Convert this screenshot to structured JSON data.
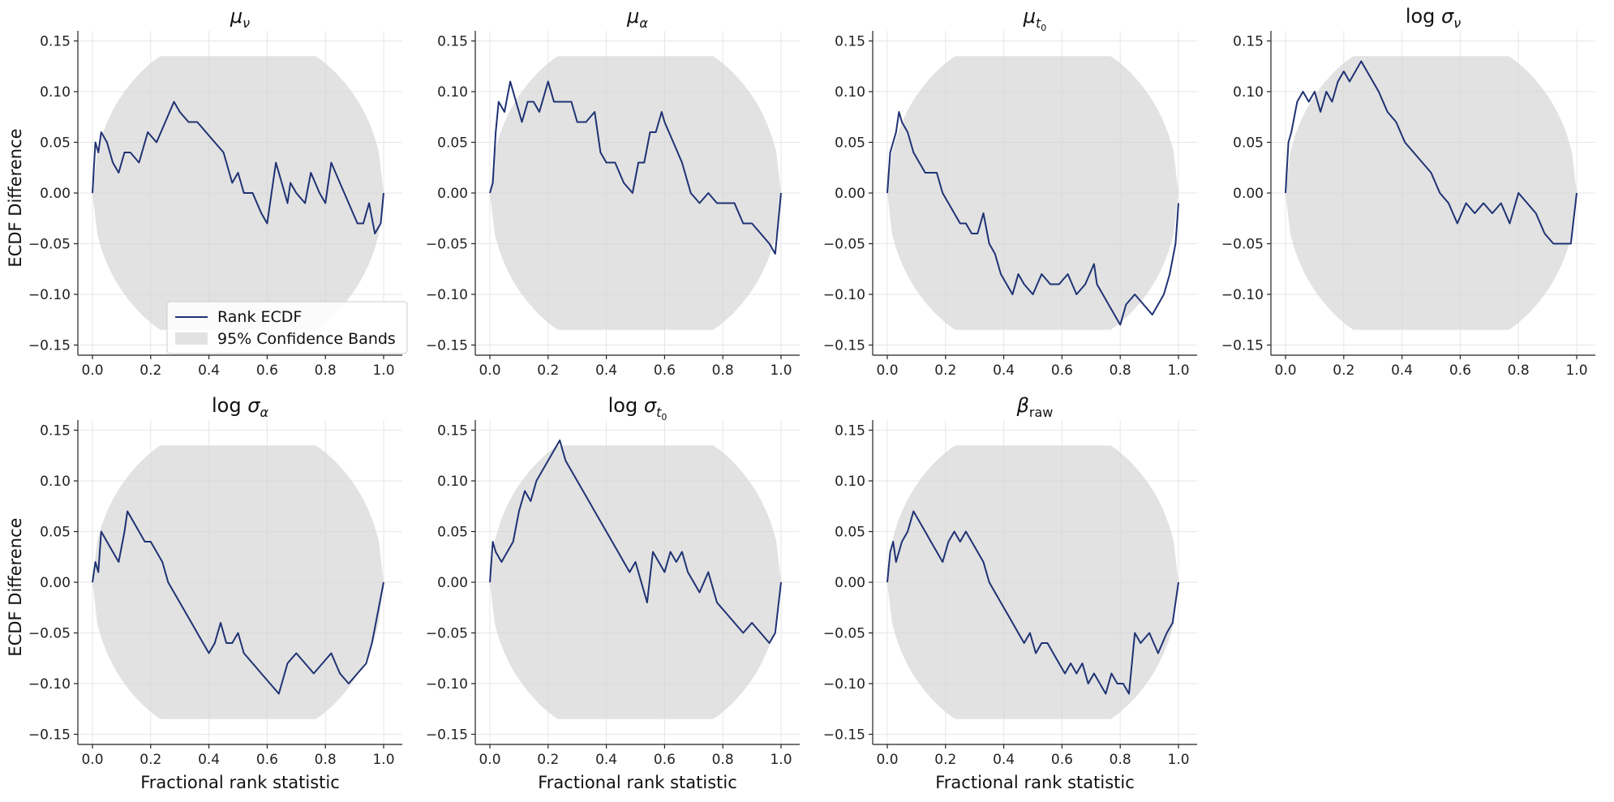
{
  "figure": {
    "y_axis_label": "ECDF Difference",
    "x_axis_label": "Fractional rank statistic",
    "legend": {
      "placement": "lower-center of first panel",
      "items": [
        {
          "label": "Rank ECDF",
          "kind": "line"
        },
        {
          "label": "95% Confidence Bands",
          "kind": "band"
        }
      ]
    },
    "colors": {
      "line": "#1f3273",
      "band": "#d3d3d3",
      "grid": "#e6e6e6",
      "axis": "#222222"
    }
  },
  "chart_data": [
    {
      "type": "line",
      "title_parts": [
        {
          "text": "μ",
          "style": "italic"
        },
        {
          "text": "ν",
          "style": "italic-sub"
        }
      ],
      "xlim": [
        0.0,
        1.0
      ],
      "ylim": [
        -0.15,
        0.15
      ],
      "xticks": [
        "0.0",
        "0.2",
        "0.4",
        "0.6",
        "0.8",
        "1.0"
      ],
      "yticks": [
        "−0.15",
        "−0.10",
        "−0.05",
        "0.00",
        "0.05",
        "0.10",
        "0.15"
      ],
      "series": [
        {
          "x": [
            0,
            0.01,
            0.02,
            0.03,
            0.05,
            0.07,
            0.09,
            0.11,
            0.13,
            0.16,
            0.19,
            0.22,
            0.25,
            0.28,
            0.3,
            0.33,
            0.36,
            0.39,
            0.42,
            0.45,
            0.48,
            0.5,
            0.52,
            0.55,
            0.58,
            0.6,
            0.63,
            0.65,
            0.67,
            0.68,
            0.7,
            0.73,
            0.75,
            0.78,
            0.8,
            0.82,
            0.85,
            0.88,
            0.91,
            0.93,
            0.95,
            0.97,
            0.99,
            1.0
          ],
          "y": [
            0,
            0.05,
            0.04,
            0.06,
            0.05,
            0.03,
            0.02,
            0.04,
            0.04,
            0.03,
            0.06,
            0.05,
            0.07,
            0.09,
            0.08,
            0.07,
            0.07,
            0.06,
            0.05,
            0.04,
            0.01,
            0.02,
            0.0,
            0.0,
            -0.02,
            -0.03,
            0.03,
            0.01,
            -0.01,
            0.01,
            0.0,
            -0.01,
            0.02,
            0.0,
            -0.01,
            0.03,
            0.01,
            -0.01,
            -0.03,
            -0.03,
            -0.01,
            -0.04,
            -0.03,
            0.0
          ]
        }
      ]
    },
    {
      "type": "line",
      "title_parts": [
        {
          "text": "μ",
          "style": "italic"
        },
        {
          "text": "α",
          "style": "italic-sub"
        }
      ],
      "xlim": [
        0.0,
        1.0
      ],
      "ylim": [
        -0.15,
        0.15
      ],
      "xticks": [
        "0.0",
        "0.2",
        "0.4",
        "0.6",
        "0.8",
        "1.0"
      ],
      "yticks": [
        "−0.15",
        "−0.10",
        "−0.05",
        "0.00",
        "0.05",
        "0.10",
        "0.15"
      ],
      "series": [
        {
          "x": [
            0,
            0.01,
            0.02,
            0.03,
            0.05,
            0.07,
            0.09,
            0.11,
            0.13,
            0.15,
            0.17,
            0.19,
            0.2,
            0.22,
            0.25,
            0.28,
            0.3,
            0.33,
            0.36,
            0.38,
            0.4,
            0.43,
            0.46,
            0.49,
            0.51,
            0.53,
            0.55,
            0.57,
            0.59,
            0.6,
            0.63,
            0.66,
            0.69,
            0.72,
            0.75,
            0.78,
            0.81,
            0.84,
            0.87,
            0.9,
            0.93,
            0.96,
            0.98,
            1.0
          ],
          "y": [
            0,
            0.01,
            0.06,
            0.09,
            0.08,
            0.11,
            0.09,
            0.07,
            0.09,
            0.09,
            0.08,
            0.1,
            0.11,
            0.09,
            0.09,
            0.09,
            0.07,
            0.07,
            0.08,
            0.04,
            0.03,
            0.03,
            0.01,
            0.0,
            0.03,
            0.03,
            0.06,
            0.06,
            0.08,
            0.07,
            0.05,
            0.03,
            0.0,
            -0.01,
            0.0,
            -0.01,
            -0.01,
            -0.01,
            -0.03,
            -0.03,
            -0.04,
            -0.05,
            -0.06,
            0.0
          ]
        }
      ]
    },
    {
      "type": "line",
      "title_parts": [
        {
          "text": "μ",
          "style": "italic"
        },
        {
          "text": "t",
          "style": "italic-sub"
        },
        {
          "text": "0",
          "style": "subsub"
        }
      ],
      "xlim": [
        0.0,
        1.0
      ],
      "ylim": [
        -0.15,
        0.15
      ],
      "xticks": [
        "0.0",
        "0.2",
        "0.4",
        "0.6",
        "0.8",
        "1.0"
      ],
      "yticks": [
        "−0.15",
        "−0.10",
        "−0.05",
        "0.00",
        "0.05",
        "0.10",
        "0.15"
      ],
      "series": [
        {
          "x": [
            0,
            0.01,
            0.02,
            0.03,
            0.04,
            0.05,
            0.07,
            0.09,
            0.11,
            0.13,
            0.15,
            0.17,
            0.19,
            0.21,
            0.23,
            0.25,
            0.27,
            0.29,
            0.31,
            0.33,
            0.35,
            0.37,
            0.39,
            0.41,
            0.43,
            0.45,
            0.47,
            0.5,
            0.53,
            0.56,
            0.59,
            0.62,
            0.65,
            0.68,
            0.71,
            0.72,
            0.74,
            0.76,
            0.78,
            0.8,
            0.82,
            0.85,
            0.88,
            0.91,
            0.93,
            0.95,
            0.97,
            0.99,
            1.0
          ],
          "y": [
            0,
            0.04,
            0.05,
            0.06,
            0.08,
            0.07,
            0.06,
            0.04,
            0.03,
            0.02,
            0.02,
            0.02,
            0.0,
            -0.01,
            -0.02,
            -0.03,
            -0.03,
            -0.04,
            -0.04,
            -0.02,
            -0.05,
            -0.06,
            -0.08,
            -0.09,
            -0.1,
            -0.08,
            -0.09,
            -0.1,
            -0.08,
            -0.09,
            -0.09,
            -0.08,
            -0.1,
            -0.09,
            -0.07,
            -0.09,
            -0.1,
            -0.11,
            -0.12,
            -0.13,
            -0.11,
            -0.1,
            -0.11,
            -0.12,
            -0.11,
            -0.1,
            -0.08,
            -0.05,
            -0.01
          ]
        }
      ]
    },
    {
      "type": "line",
      "title_parts": [
        {
          "text": "log ",
          "style": "roman"
        },
        {
          "text": "σ",
          "style": "italic"
        },
        {
          "text": "ν",
          "style": "italic-sub"
        }
      ],
      "xlim": [
        0.0,
        1.0
      ],
      "ylim": [
        -0.15,
        0.15
      ],
      "xticks": [
        "0.0",
        "0.2",
        "0.4",
        "0.6",
        "0.8",
        "1.0"
      ],
      "yticks": [
        "−0.15",
        "−0.10",
        "−0.05",
        "0.00",
        "0.05",
        "0.10",
        "0.15"
      ],
      "series": [
        {
          "x": [
            0,
            0.01,
            0.02,
            0.04,
            0.06,
            0.08,
            0.1,
            0.12,
            0.14,
            0.16,
            0.18,
            0.2,
            0.22,
            0.24,
            0.26,
            0.28,
            0.3,
            0.32,
            0.35,
            0.38,
            0.41,
            0.44,
            0.47,
            0.5,
            0.53,
            0.56,
            0.59,
            0.62,
            0.65,
            0.68,
            0.71,
            0.74,
            0.77,
            0.8,
            0.83,
            0.86,
            0.89,
            0.92,
            0.95,
            0.98,
            1.0
          ],
          "y": [
            0,
            0.05,
            0.06,
            0.09,
            0.1,
            0.09,
            0.1,
            0.08,
            0.1,
            0.09,
            0.11,
            0.12,
            0.11,
            0.12,
            0.13,
            0.12,
            0.11,
            0.1,
            0.08,
            0.07,
            0.05,
            0.04,
            0.03,
            0.02,
            0.0,
            -0.01,
            -0.03,
            -0.01,
            -0.02,
            -0.01,
            -0.02,
            -0.01,
            -0.03,
            0.0,
            -0.01,
            -0.02,
            -0.04,
            -0.05,
            -0.05,
            -0.05,
            0.0
          ]
        }
      ]
    },
    {
      "type": "line",
      "title_parts": [
        {
          "text": "log ",
          "style": "roman"
        },
        {
          "text": "σ",
          "style": "italic"
        },
        {
          "text": "α",
          "style": "italic-sub"
        }
      ],
      "xlim": [
        0.0,
        1.0
      ],
      "ylim": [
        -0.15,
        0.15
      ],
      "xticks": [
        "0.0",
        "0.2",
        "0.4",
        "0.6",
        "0.8",
        "1.0"
      ],
      "yticks": [
        "−0.15",
        "−0.10",
        "−0.05",
        "0.00",
        "0.05",
        "0.10",
        "0.15"
      ],
      "series": [
        {
          "x": [
            0,
            0.01,
            0.02,
            0.03,
            0.05,
            0.07,
            0.09,
            0.11,
            0.12,
            0.14,
            0.16,
            0.18,
            0.2,
            0.22,
            0.24,
            0.26,
            0.28,
            0.3,
            0.32,
            0.34,
            0.36,
            0.38,
            0.4,
            0.42,
            0.44,
            0.46,
            0.48,
            0.5,
            0.52,
            0.55,
            0.58,
            0.61,
            0.64,
            0.67,
            0.7,
            0.73,
            0.76,
            0.79,
            0.82,
            0.85,
            0.88,
            0.91,
            0.94,
            0.96,
            0.98,
            1.0
          ],
          "y": [
            0,
            0.02,
            0.01,
            0.05,
            0.04,
            0.03,
            0.02,
            0.05,
            0.07,
            0.06,
            0.05,
            0.04,
            0.04,
            0.03,
            0.02,
            0.0,
            -0.01,
            -0.02,
            -0.03,
            -0.04,
            -0.05,
            -0.06,
            -0.07,
            -0.06,
            -0.04,
            -0.06,
            -0.06,
            -0.05,
            -0.07,
            -0.08,
            -0.09,
            -0.1,
            -0.11,
            -0.08,
            -0.07,
            -0.08,
            -0.09,
            -0.08,
            -0.07,
            -0.09,
            -0.1,
            -0.09,
            -0.08,
            -0.06,
            -0.03,
            0.0
          ]
        }
      ]
    },
    {
      "type": "line",
      "title_parts": [
        {
          "text": "log ",
          "style": "roman"
        },
        {
          "text": "σ",
          "style": "italic"
        },
        {
          "text": "t",
          "style": "italic-sub"
        },
        {
          "text": "0",
          "style": "subsub"
        }
      ],
      "xlim": [
        0.0,
        1.0
      ],
      "ylim": [
        -0.15,
        0.15
      ],
      "xticks": [
        "0.0",
        "0.2",
        "0.4",
        "0.6",
        "0.8",
        "1.0"
      ],
      "yticks": [
        "−0.15",
        "−0.10",
        "−0.05",
        "0.00",
        "0.05",
        "0.10",
        "0.15"
      ],
      "series": [
        {
          "x": [
            0,
            0.01,
            0.02,
            0.04,
            0.06,
            0.08,
            0.1,
            0.12,
            0.14,
            0.16,
            0.18,
            0.2,
            0.22,
            0.24,
            0.26,
            0.28,
            0.3,
            0.32,
            0.34,
            0.36,
            0.38,
            0.4,
            0.42,
            0.44,
            0.46,
            0.48,
            0.5,
            0.52,
            0.54,
            0.56,
            0.58,
            0.6,
            0.62,
            0.64,
            0.66,
            0.68,
            0.7,
            0.72,
            0.75,
            0.78,
            0.81,
            0.84,
            0.87,
            0.9,
            0.93,
            0.96,
            0.98,
            1.0
          ],
          "y": [
            0,
            0.04,
            0.03,
            0.02,
            0.03,
            0.04,
            0.07,
            0.09,
            0.08,
            0.1,
            0.11,
            0.12,
            0.13,
            0.14,
            0.12,
            0.11,
            0.1,
            0.09,
            0.08,
            0.07,
            0.06,
            0.05,
            0.04,
            0.03,
            0.02,
            0.01,
            0.02,
            0.0,
            -0.02,
            0.03,
            0.02,
            0.01,
            0.03,
            0.02,
            0.03,
            0.01,
            0.0,
            -0.01,
            0.01,
            -0.02,
            -0.03,
            -0.04,
            -0.05,
            -0.04,
            -0.05,
            -0.06,
            -0.05,
            0.0
          ]
        }
      ]
    },
    {
      "type": "line",
      "title_parts": [
        {
          "text": "β",
          "style": "italic"
        },
        {
          "text": "raw",
          "style": "roman-sub"
        }
      ],
      "xlim": [
        0.0,
        1.0
      ],
      "ylim": [
        -0.15,
        0.15
      ],
      "xticks": [
        "0.0",
        "0.2",
        "0.4",
        "0.6",
        "0.8",
        "1.0"
      ],
      "yticks": [
        "−0.15",
        "−0.10",
        "−0.05",
        "0.00",
        "0.05",
        "0.10",
        "0.15"
      ],
      "series": [
        {
          "x": [
            0,
            0.01,
            0.02,
            0.03,
            0.05,
            0.07,
            0.09,
            0.11,
            0.13,
            0.15,
            0.17,
            0.19,
            0.21,
            0.23,
            0.25,
            0.27,
            0.29,
            0.31,
            0.33,
            0.35,
            0.37,
            0.39,
            0.41,
            0.43,
            0.45,
            0.47,
            0.49,
            0.51,
            0.53,
            0.55,
            0.57,
            0.59,
            0.61,
            0.63,
            0.65,
            0.67,
            0.69,
            0.71,
            0.73,
            0.75,
            0.77,
            0.79,
            0.81,
            0.83,
            0.85,
            0.87,
            0.9,
            0.93,
            0.96,
            0.98,
            1.0
          ],
          "y": [
            0,
            0.03,
            0.04,
            0.02,
            0.04,
            0.05,
            0.07,
            0.06,
            0.05,
            0.04,
            0.03,
            0.02,
            0.04,
            0.05,
            0.04,
            0.05,
            0.04,
            0.03,
            0.02,
            0.0,
            -0.01,
            -0.02,
            -0.03,
            -0.04,
            -0.05,
            -0.06,
            -0.05,
            -0.07,
            -0.06,
            -0.06,
            -0.07,
            -0.08,
            -0.09,
            -0.08,
            -0.09,
            -0.08,
            -0.1,
            -0.09,
            -0.1,
            -0.11,
            -0.09,
            -0.1,
            -0.1,
            -0.11,
            -0.05,
            -0.06,
            -0.05,
            -0.07,
            -0.05,
            -0.04,
            0.0
          ]
        }
      ]
    }
  ]
}
